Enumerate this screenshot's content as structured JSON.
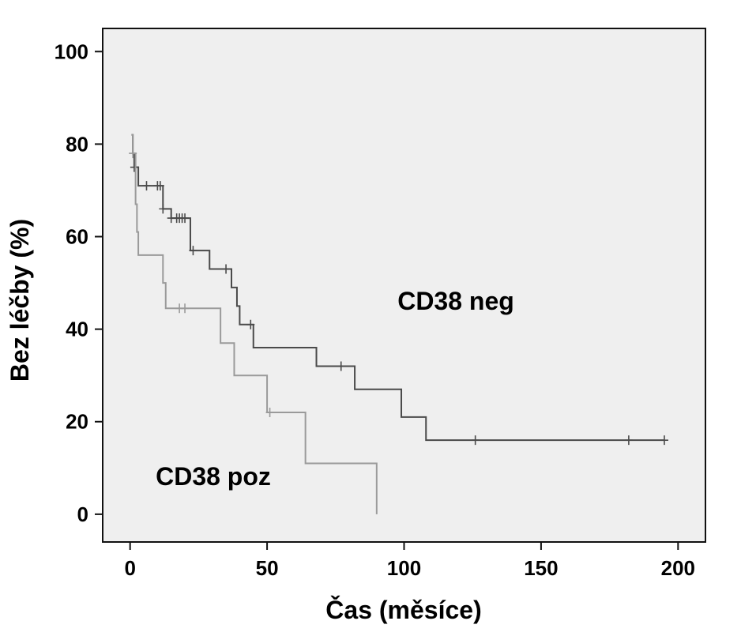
{
  "chart_data": {
    "type": "line",
    "subtype": "kaplan-meier-step",
    "xlabel": "Čas (měsíce)",
    "ylabel": "Bez léčby (%)",
    "xlim": [
      -10,
      210
    ],
    "ylim": [
      -6,
      105
    ],
    "xticks": [
      0,
      50,
      100,
      150,
      200
    ],
    "yticks": [
      0,
      20,
      40,
      60,
      80,
      100
    ],
    "grid": false,
    "plot_background": "#efefef",
    "series": [
      {
        "name": "CD38 neg",
        "color": "#4a4a4a",
        "steps": [
          [
            0.5,
            82
          ],
          [
            1,
            78
          ],
          [
            1.5,
            75
          ],
          [
            3,
            71
          ],
          [
            12,
            66
          ],
          [
            15,
            64
          ],
          [
            22,
            57
          ],
          [
            29,
            53
          ],
          [
            37,
            49
          ],
          [
            39,
            45
          ],
          [
            40,
            41
          ],
          [
            45,
            36
          ],
          [
            68,
            32
          ],
          [
            82,
            27
          ],
          [
            99,
            21
          ],
          [
            108,
            16
          ],
          [
            195,
            16
          ]
        ],
        "censored": [
          [
            1.5,
            75
          ],
          [
            6,
            71
          ],
          [
            10,
            71
          ],
          [
            11,
            71
          ],
          [
            12,
            66
          ],
          [
            15,
            64
          ],
          [
            17,
            64
          ],
          [
            18,
            64
          ],
          [
            19,
            64
          ],
          [
            20,
            64
          ],
          [
            23,
            57
          ],
          [
            35,
            53
          ],
          [
            44,
            41
          ],
          [
            77,
            32
          ],
          [
            126,
            16
          ],
          [
            182,
            16
          ],
          [
            195,
            16
          ]
        ]
      },
      {
        "name": "CD38 poz",
        "color": "#9a9a9a",
        "steps": [
          [
            0.5,
            82
          ],
          [
            1,
            78
          ],
          [
            2,
            67
          ],
          [
            2.5,
            61
          ],
          [
            3,
            56
          ],
          [
            12,
            50
          ],
          [
            13,
            44.5
          ],
          [
            33,
            37
          ],
          [
            38,
            30
          ],
          [
            50,
            22
          ],
          [
            64,
            11
          ],
          [
            90,
            11
          ],
          [
            90,
            0
          ]
        ],
        "censored": [
          [
            1,
            78
          ],
          [
            18,
            44.5
          ],
          [
            20,
            44.5
          ],
          [
            51,
            22
          ]
        ]
      }
    ]
  }
}
